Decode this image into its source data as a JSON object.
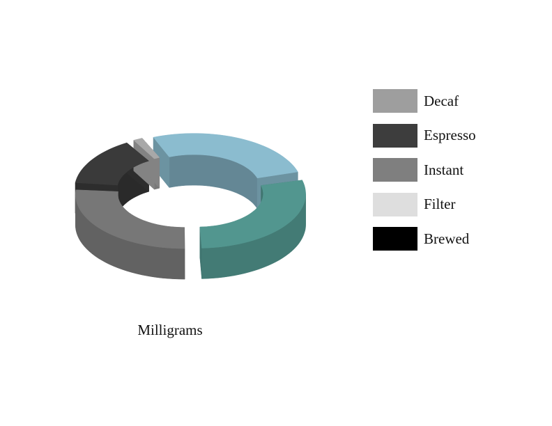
{
  "chart_data": {
    "type": "pie",
    "style": "3d-donut",
    "xlabel": "Milligrams",
    "legend_position": "right",
    "legend": [
      {
        "label": "Decaf",
        "color": "#9e9e9e"
      },
      {
        "label": "Espresso",
        "color": "#3d3d3d"
      },
      {
        "label": "Instant",
        "color": "#7f7f7f"
      },
      {
        "label": "Filter",
        "color": "#dedede"
      },
      {
        "label": "Brewed",
        "color": "#000000"
      }
    ],
    "slices": [
      {
        "value": 27,
        "color": "#8bbccf"
      },
      {
        "value": 29,
        "color": "#52968f"
      },
      {
        "value": 27,
        "color": "#777777"
      },
      {
        "value": 15,
        "color": "#3a3a3a"
      },
      {
        "value": 2,
        "color": "#a8a8a8"
      }
    ]
  }
}
